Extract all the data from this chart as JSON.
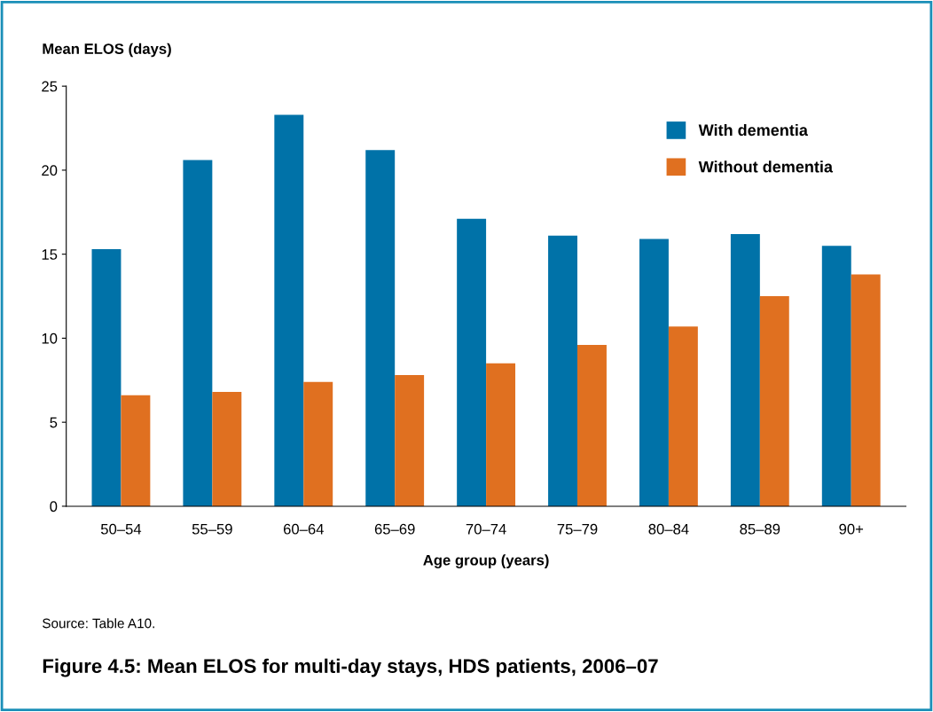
{
  "chart_data": {
    "type": "bar",
    "title": "Figure 4.5: Mean ELOS for multi-day stays, HDS patients, 2006–07",
    "xlabel": "Age group (years)",
    "ylabel": "Mean ELOS (days)",
    "categories": [
      "50–54",
      "55–59",
      "60–64",
      "65–69",
      "70–74",
      "75–79",
      "80–84",
      "85–89",
      "90+"
    ],
    "series": [
      {
        "name": "With dementia",
        "color": "#0072a8",
        "values": [
          15.3,
          20.6,
          23.3,
          21.2,
          17.1,
          16.1,
          15.9,
          16.2,
          15.5
        ]
      },
      {
        "name": "Without dementia",
        "color": "#e07020",
        "values": [
          6.6,
          6.8,
          7.4,
          7.8,
          8.5,
          9.6,
          10.7,
          12.5,
          13.8
        ]
      }
    ],
    "ylim": [
      0,
      25
    ],
    "yticks": [
      0,
      5,
      10,
      15,
      20,
      25
    ],
    "grid": false,
    "legend": "top right",
    "annotations": [
      "Source: Table A10."
    ]
  }
}
